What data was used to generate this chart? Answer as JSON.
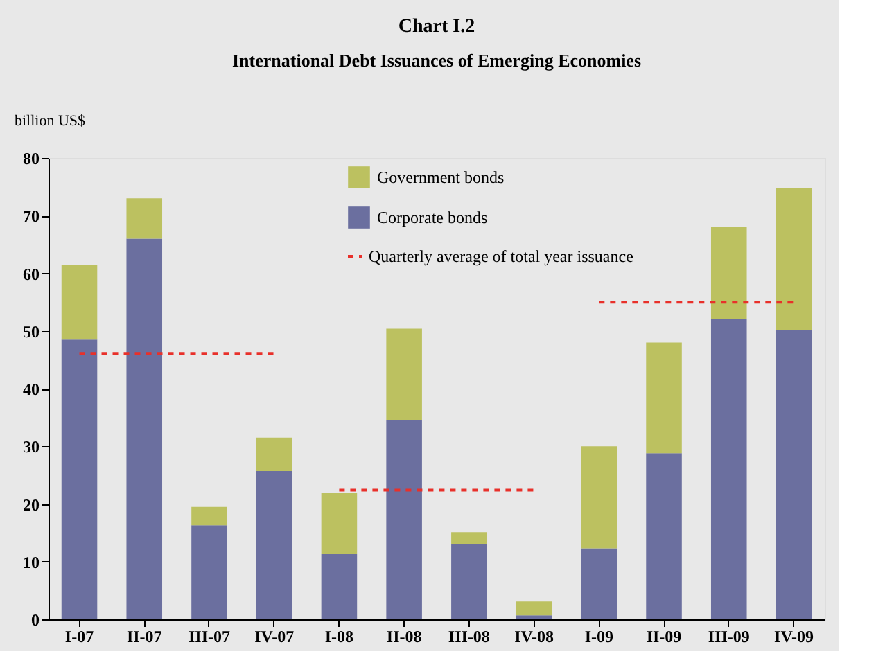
{
  "chart_data": {
    "type": "bar",
    "title": "Chart I.2",
    "subtitle": "International Debt Issuances of Emerging Economies",
    "ylabel": "billion US$",
    "categories": [
      "I-07",
      "II-07",
      "III-07",
      "IV-07",
      "I-08",
      "II-08",
      "III-08",
      "IV-08",
      "I-09",
      "II-09",
      "III-09",
      "IV-09"
    ],
    "stacked": true,
    "ylim": [
      0,
      80
    ],
    "yticks": [
      0,
      10,
      20,
      30,
      40,
      50,
      60,
      70,
      80
    ],
    "grid": false,
    "legend": "top",
    "series": [
      {
        "name": "Corporate bonds",
        "color": "#6b6f9f",
        "values": [
          48.5,
          66,
          16.3,
          25.7,
          11.3,
          34.6,
          13,
          0.7,
          12.3,
          28.8,
          52,
          50.2
        ]
      },
      {
        "name": "Government bonds",
        "color": "#bcc160",
        "values": [
          13,
          7,
          3.2,
          5.8,
          10.6,
          15.8,
          2.1,
          2.4,
          17.7,
          19.2,
          16,
          24.5
        ]
      },
      {
        "name": "Quarterly average of total year issuance",
        "type": "line",
        "line_style": "dashed",
        "color": "#e8302a",
        "values": [
          46.1,
          46.1,
          46.1,
          46.1,
          22.4,
          22.4,
          22.4,
          22.4,
          55,
          55,
          55,
          55
        ]
      }
    ]
  }
}
